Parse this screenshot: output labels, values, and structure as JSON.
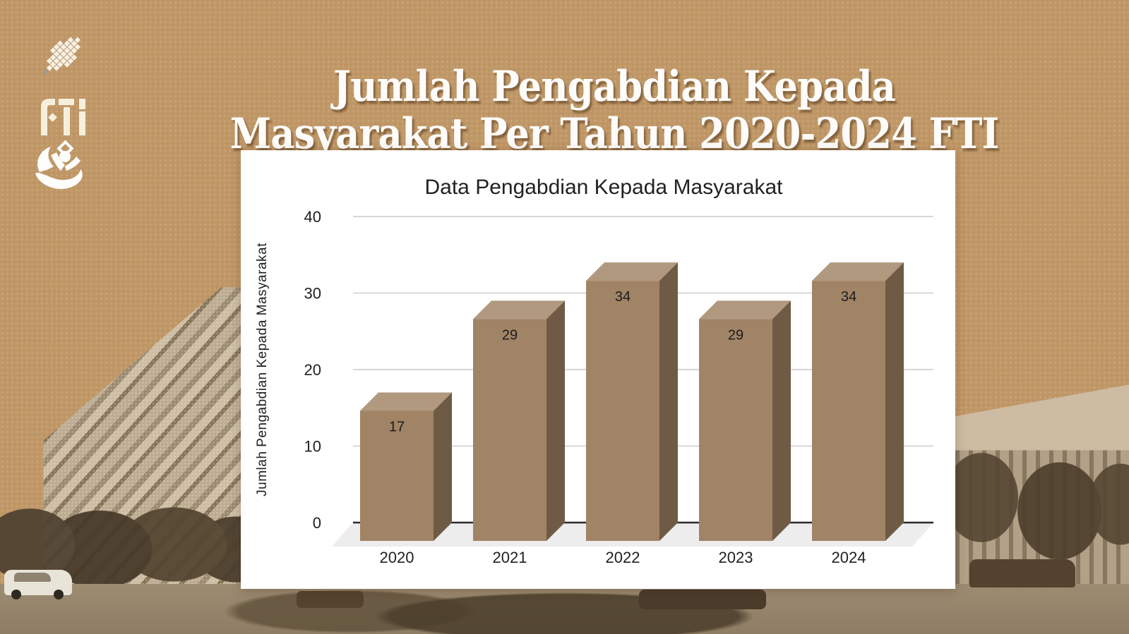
{
  "page": {
    "background_color": "#c09767",
    "card_color": "#ffffff"
  },
  "header": {
    "title_line1": "Jumlah Pengabdian Kepada",
    "title_line2": "Masyarakat Per Tahun 2020-2024 FTI",
    "text_color": "#fdfcfa"
  },
  "logos": {
    "batik_keris": "batik-keris-logo",
    "fti_text": "FTI",
    "person_swoosh": "person-swoosh-logo"
  },
  "chart_data": {
    "type": "bar",
    "style_3d": true,
    "title": "Data Pengabdian Kepada Masyarakat",
    "categories": [
      "2020",
      "2021",
      "2022",
      "2023",
      "2024"
    ],
    "values": [
      17,
      29,
      34,
      29,
      34
    ],
    "xlabel": "",
    "ylabel": "Jumlah Pengabdian Kepada Masyarakat",
    "yticks": [
      0,
      10,
      20,
      30,
      40
    ],
    "ylim": [
      0,
      40
    ],
    "grid": true,
    "legend_position": "none",
    "colors": {
      "bar_front": "#a18366",
      "bar_top": "#b0997f",
      "bar_side": "#6f5b45",
      "floor": "#ededed",
      "gridline": "#d7d7d7",
      "axis_line": "#2a2a2a",
      "text": "#202124"
    }
  }
}
